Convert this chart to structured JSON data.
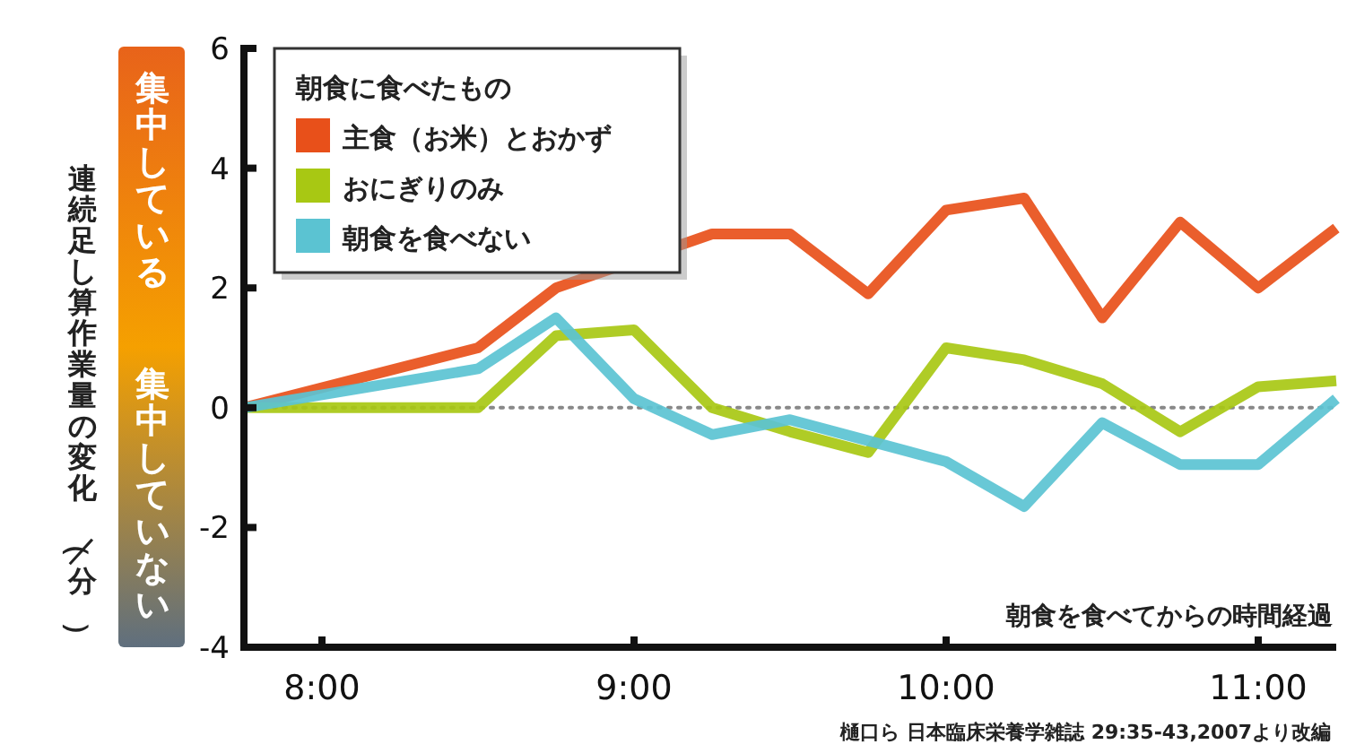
{
  "chart_data": {
    "type": "line",
    "xlabel": "朝食を食べてからの時間経過",
    "ylabel": "連続足し算作業量の変化（／分）",
    "legend_title": "朝食に食べたもの",
    "legend": "top left",
    "grid": false,
    "x": [
      7.75,
      8.5,
      8.75,
      9,
      9.25,
      9.5,
      9.75,
      10,
      10.25,
      10.5,
      10.75,
      11,
      11.25
    ],
    "xlim": [
      7.75,
      11.25
    ],
    "xticks": [
      {
        "value": 8,
        "label": "8:00"
      },
      {
        "value": 9,
        "label": "9:00"
      },
      {
        "value": 10,
        "label": "10:00"
      },
      {
        "value": 11,
        "label": "11:00"
      }
    ],
    "ylim": [
      -4,
      6
    ],
    "yticks": [
      -4,
      -2,
      0,
      2,
      4,
      6
    ],
    "series": [
      {
        "name": "主食（お米）とおかず",
        "color": "#e8501a",
        "values": [
          0,
          1.0,
          2.0,
          null,
          2.9,
          2.9,
          1.9,
          3.3,
          3.5,
          1.5,
          3.1,
          2.0,
          3.0
        ]
      },
      {
        "name": "おにぎりのみ",
        "color": "#a8c813",
        "values": [
          0,
          0,
          1.2,
          1.3,
          0,
          -0.4,
          -0.75,
          1.0,
          0.8,
          0.4,
          -0.4,
          0.35,
          0.45
        ]
      },
      {
        "name": "朝食を食べない",
        "color": "#5bc3d2",
        "values": [
          0,
          0.65,
          1.5,
          0.15,
          -0.45,
          -0.2,
          -0.55,
          -0.9,
          -1.65,
          -0.25,
          -0.95,
          -0.95,
          0.15
        ]
      }
    ],
    "ref_lines": [
      {
        "axis": "y",
        "value": 0,
        "color": "#888888",
        "line_style": "dotted"
      }
    ],
    "annotations": [
      "集中している",
      "集中していない",
      "樋口ら 日本臨床栄養学雑誌 29:35-43,2007より改編"
    ]
  }
}
